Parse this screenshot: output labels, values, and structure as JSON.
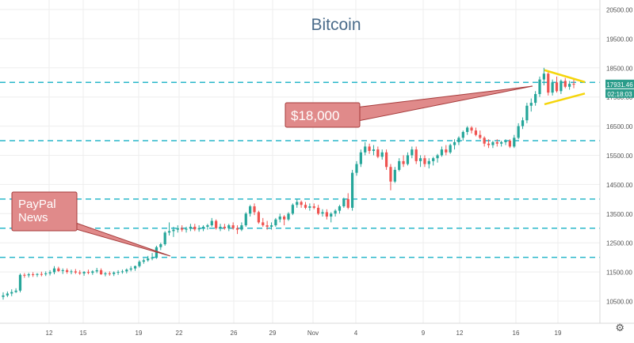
{
  "chart_data": {
    "type": "candlestick",
    "title": "Bitcoin",
    "y_ticks": [
      "20500.00",
      "19500.00",
      "18500.00",
      "17500.00",
      "16500.00",
      "15500.00",
      "14500.00",
      "13500.00",
      "12500.00",
      "11500.00",
      "10500.00"
    ],
    "x_ticks": [
      "12",
      "15",
      "19",
      "22",
      "26",
      "29",
      "Nov",
      "4",
      "9",
      "12",
      "16",
      "19"
    ],
    "ylim": [
      10100,
      20800
    ],
    "horizontal_levels": [
      18000,
      16000,
      14000,
      13000,
      12000
    ],
    "price_label": "17931.46",
    "countdown_label": "02:18:03",
    "annotations": [
      {
        "text": "$18,000"
      },
      {
        "text": "PayPal\nNews"
      }
    ],
    "colors": {
      "up": "#26a69a",
      "down": "#ef5350",
      "level_line": "#2ab7ca",
      "triangle": "#f5d50b",
      "annotation_fill": "#e08a8a",
      "annotation_stroke": "#a63b3b",
      "price_label_bg": "#2a9c8a",
      "title": "#4a6b8a",
      "grid": "#eeeeee"
    },
    "candles": [
      [
        10645,
        10800,
        10550,
        10695
      ],
      [
        10695,
        10830,
        10640,
        10760
      ],
      [
        10760,
        10905,
        10670,
        10810
      ],
      [
        10810,
        10940,
        10780,
        10860
      ],
      [
        10860,
        11450,
        10800,
        11400
      ],
      [
        11400,
        11460,
        11300,
        11385
      ],
      [
        11385,
        11470,
        11310,
        11420
      ],
      [
        11420,
        11490,
        11330,
        11400
      ],
      [
        11400,
        11460,
        11330,
        11430
      ],
      [
        11430,
        11510,
        11350,
        11420
      ],
      [
        11420,
        11520,
        11360,
        11450
      ],
      [
        11450,
        11560,
        11380,
        11490
      ],
      [
        11490,
        11700,
        11420,
        11620
      ],
      [
        11620,
        11680,
        11500,
        11530
      ],
      [
        11530,
        11620,
        11430,
        11560
      ],
      [
        11560,
        11620,
        11440,
        11500
      ],
      [
        11500,
        11580,
        11420,
        11520
      ],
      [
        11520,
        11600,
        11430,
        11480
      ],
      [
        11480,
        11560,
        11400,
        11450
      ],
      [
        11450,
        11530,
        11370,
        11500
      ],
      [
        11500,
        11580,
        11420,
        11470
      ],
      [
        11470,
        11560,
        11400,
        11520
      ],
      [
        11520,
        11640,
        11460,
        11560
      ],
      [
        11560,
        11620,
        11400,
        11420
      ],
      [
        11420,
        11500,
        11350,
        11450
      ],
      [
        11450,
        11520,
        11370,
        11430
      ],
      [
        11430,
        11520,
        11360,
        11480
      ],
      [
        11480,
        11560,
        11400,
        11500
      ],
      [
        11500,
        11580,
        11440,
        11520
      ],
      [
        11520,
        11620,
        11450,
        11580
      ],
      [
        11580,
        11700,
        11520,
        11620
      ],
      [
        11620,
        11720,
        11540,
        11700
      ],
      [
        11700,
        11900,
        11650,
        11850
      ],
      [
        11850,
        11960,
        11780,
        11900
      ],
      [
        11900,
        12050,
        11850,
        11960
      ],
      [
        11960,
        12150,
        11900,
        12000
      ],
      [
        12000,
        12400,
        11950,
        12350
      ],
      [
        12350,
        12500,
        12250,
        12450
      ],
      [
        12450,
        12900,
        12400,
        12850
      ],
      [
        12850,
        13200,
        12750,
        12900
      ],
      [
        12900,
        13050,
        12700,
        12950
      ],
      [
        12950,
        13100,
        12850,
        13000
      ],
      [
        13000,
        13100,
        12880,
        12950
      ],
      [
        12950,
        13050,
        12850,
        12980
      ],
      [
        12980,
        13150,
        12900,
        13050
      ],
      [
        13050,
        13150,
        12900,
        12960
      ],
      [
        12960,
        13100,
        12880,
        13000
      ],
      [
        13000,
        13100,
        12900,
        13050
      ],
      [
        13050,
        13150,
        12950,
        13100
      ],
      [
        13100,
        13350,
        13050,
        13250
      ],
      [
        13250,
        13300,
        12950,
        13000
      ],
      [
        13000,
        13150,
        12900,
        13050
      ],
      [
        13050,
        13150,
        12950,
        13000
      ],
      [
        13000,
        13150,
        12900,
        13100
      ],
      [
        13100,
        13200,
        12950,
        13000
      ],
      [
        13000,
        13100,
        12800,
        12950
      ],
      [
        12950,
        13200,
        12900,
        13100
      ],
      [
        13100,
        13550,
        13050,
        13500
      ],
      [
        13500,
        13800,
        13400,
        13750
      ],
      [
        13750,
        13850,
        13450,
        13550
      ],
      [
        13550,
        13600,
        13150,
        13200
      ],
      [
        13200,
        13350,
        13050,
        13100
      ],
      [
        13100,
        13250,
        12950,
        13050
      ],
      [
        13050,
        13200,
        12950,
        13100
      ],
      [
        13100,
        13350,
        13050,
        13300
      ],
      [
        13300,
        13500,
        13200,
        13400
      ],
      [
        13400,
        13450,
        13100,
        13300
      ],
      [
        13300,
        13550,
        13250,
        13500
      ],
      [
        13500,
        13850,
        13450,
        13800
      ],
      [
        13800,
        14000,
        13700,
        13900
      ],
      [
        13900,
        13950,
        13700,
        13800
      ],
      [
        13800,
        13900,
        13650,
        13700
      ],
      [
        13700,
        13850,
        13600,
        13750
      ],
      [
        13750,
        13850,
        13650,
        13700
      ],
      [
        13700,
        13800,
        13450,
        13500
      ],
      [
        13500,
        13650,
        13400,
        13550
      ],
      [
        13550,
        13650,
        13300,
        13400
      ],
      [
        13400,
        13550,
        13200,
        13500
      ],
      [
        13500,
        13650,
        13400,
        13600
      ],
      [
        13600,
        13800,
        13500,
        13750
      ],
      [
        13750,
        14050,
        13700,
        14000
      ],
      [
        14000,
        14200,
        13650,
        13700
      ],
      [
        13700,
        15000,
        13600,
        14900
      ],
      [
        14900,
        15300,
        14800,
        15200
      ],
      [
        15200,
        15700,
        15100,
        15600
      ],
      [
        15600,
        15950,
        15500,
        15800
      ],
      [
        15800,
        15900,
        15550,
        15650
      ],
      [
        15650,
        15850,
        15500,
        15700
      ],
      [
        15700,
        15800,
        15400,
        15450
      ],
      [
        15450,
        15700,
        15350,
        15600
      ],
      [
        15600,
        15700,
        15000,
        15100
      ],
      [
        15100,
        15200,
        14300,
        14600
      ],
      [
        14600,
        15100,
        14550,
        15000
      ],
      [
        15000,
        15400,
        14950,
        15300
      ],
      [
        15300,
        15500,
        15100,
        15200
      ],
      [
        15200,
        15600,
        15150,
        15500
      ],
      [
        15500,
        15800,
        15400,
        15700
      ],
      [
        15700,
        15800,
        15200,
        15300
      ],
      [
        15300,
        15500,
        15100,
        15400
      ],
      [
        15400,
        15500,
        15100,
        15200
      ],
      [
        15200,
        15400,
        15050,
        15300
      ],
      [
        15300,
        15450,
        15150,
        15400
      ],
      [
        15400,
        15550,
        15250,
        15500
      ],
      [
        15500,
        15800,
        15450,
        15700
      ],
      [
        15700,
        15850,
        15500,
        15600
      ],
      [
        15600,
        15900,
        15550,
        15850
      ],
      [
        15850,
        16050,
        15700,
        15950
      ],
      [
        15950,
        16150,
        15850,
        16100
      ],
      [
        16100,
        16350,
        16000,
        16300
      ],
      [
        16300,
        16500,
        16200,
        16450
      ],
      [
        16450,
        16500,
        16250,
        16350
      ],
      [
        16350,
        16450,
        16150,
        16200
      ],
      [
        16200,
        16350,
        16050,
        16100
      ],
      [
        16100,
        16150,
        15800,
        15900
      ],
      [
        15900,
        16050,
        15750,
        15850
      ],
      [
        15850,
        16000,
        15750,
        15950
      ],
      [
        15950,
        16050,
        15800,
        15900
      ],
      [
        15900,
        16000,
        15800,
        15950
      ],
      [
        15950,
        16050,
        15850,
        16000
      ],
      [
        16000,
        16050,
        15750,
        15800
      ],
      [
        15800,
        16200,
        15750,
        16100
      ],
      [
        16100,
        16600,
        16050,
        16500
      ],
      [
        16500,
        16800,
        16400,
        16700
      ],
      [
        16700,
        17300,
        16600,
        17200
      ],
      [
        17200,
        17450,
        17000,
        17300
      ],
      [
        17300,
        17700,
        17200,
        17600
      ],
      [
        17600,
        18200,
        17500,
        18100
      ],
      [
        18100,
        18500,
        17900,
        18300
      ],
      [
        18300,
        18400,
        17550,
        17650
      ],
      [
        17650,
        18100,
        17550,
        18000
      ],
      [
        18000,
        18200,
        17650,
        17700
      ],
      [
        17700,
        18100,
        17600,
        18050
      ],
      [
        18050,
        18150,
        17800,
        17850
      ],
      [
        17850,
        18050,
        17750,
        17950
      ],
      [
        17950,
        18100,
        17800,
        17931
      ]
    ]
  }
}
